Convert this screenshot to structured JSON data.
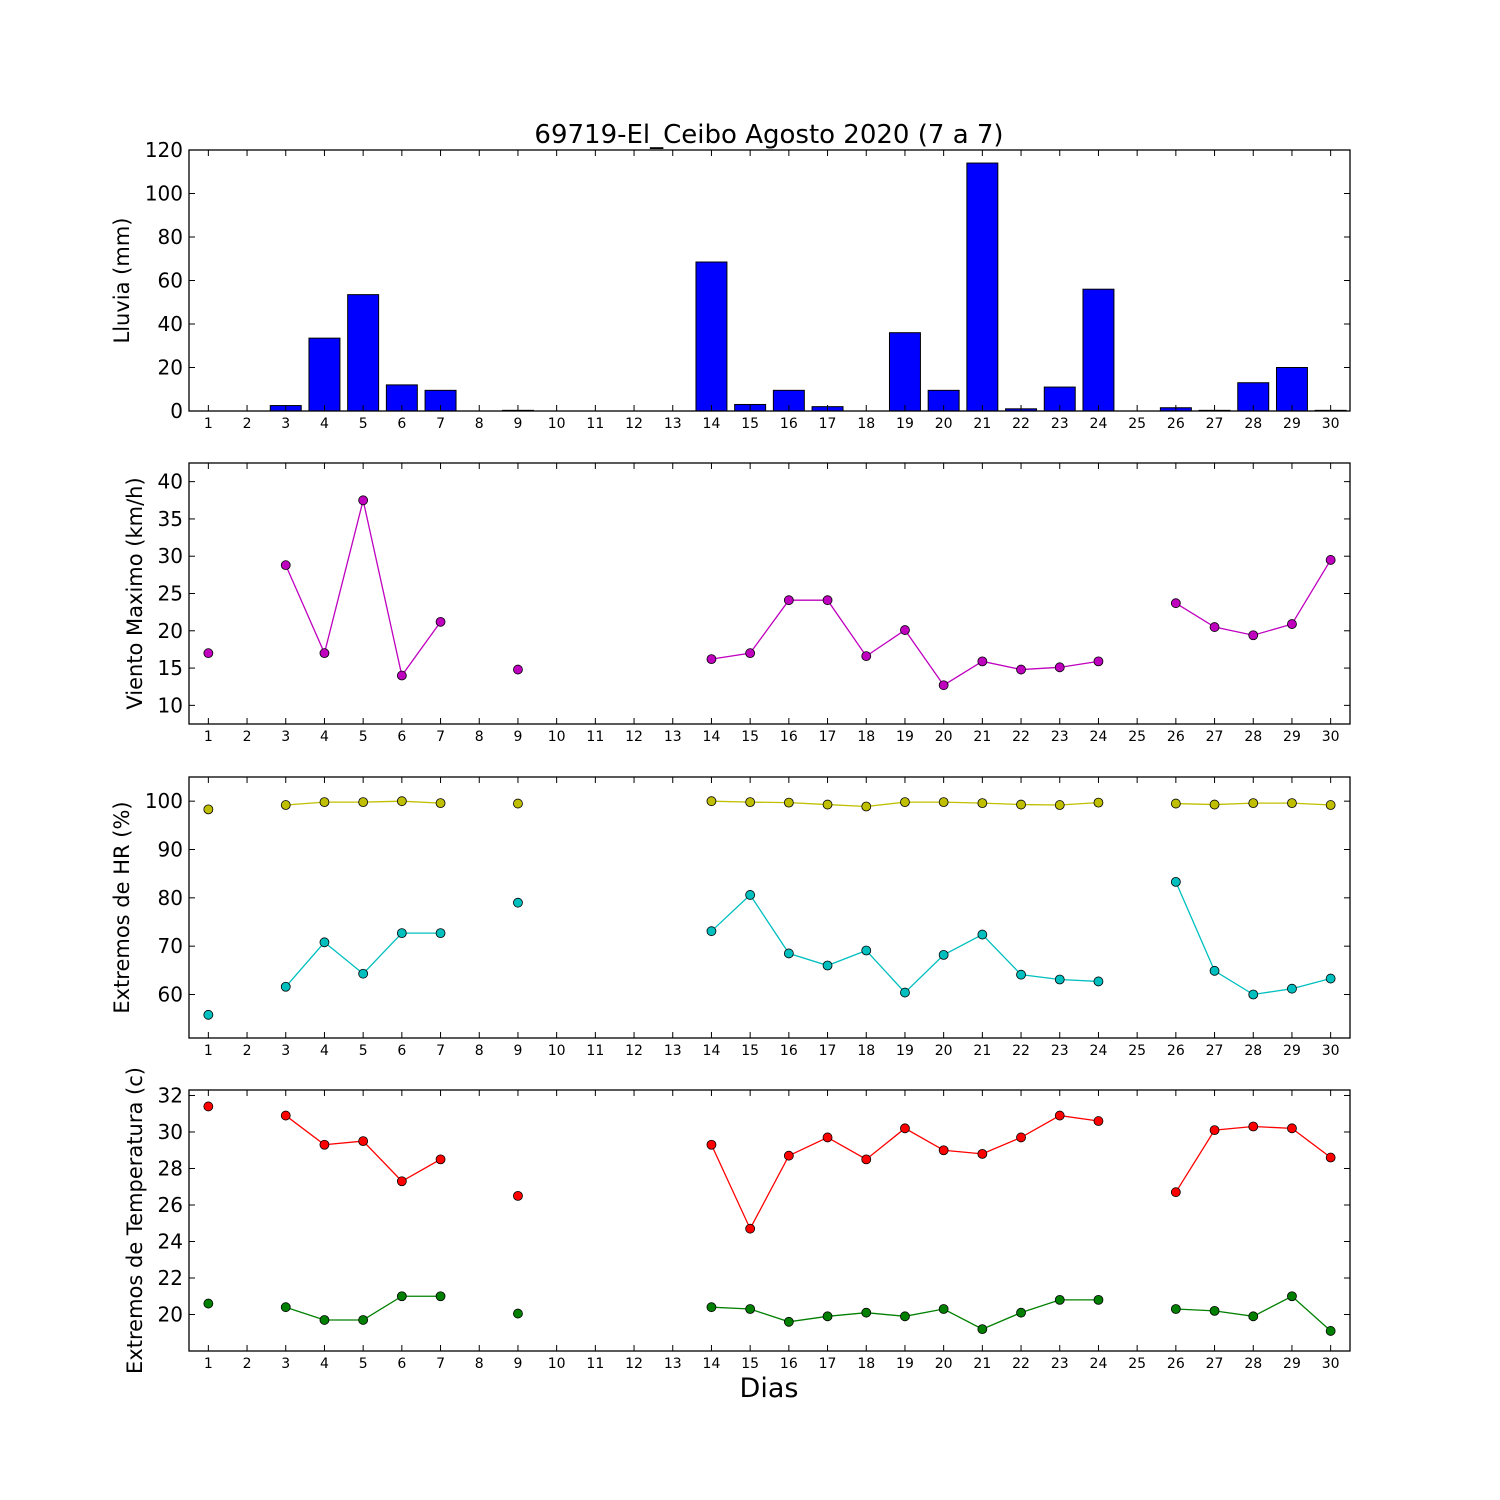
{
  "figure": {
    "title": "69719-El_Ceibo Agosto 2020  (7 a 7)",
    "xlabel": "Dias"
  },
  "chart_data": [
    {
      "type": "bar",
      "ylabel": "Lluvia (mm)",
      "ylim": [
        0,
        120
      ],
      "yticks": [
        0,
        20,
        40,
        60,
        80,
        100,
        120
      ],
      "xlim": [
        0.5,
        30.5
      ],
      "x": [
        1,
        2,
        3,
        4,
        5,
        6,
        7,
        8,
        9,
        10,
        11,
        12,
        13,
        14,
        15,
        16,
        17,
        18,
        19,
        20,
        21,
        22,
        23,
        24,
        25,
        26,
        27,
        28,
        29,
        30
      ],
      "series": [
        {
          "color": "#0000ff",
          "values": [
            0,
            0,
            2.5,
            33.5,
            53.5,
            12,
            9.5,
            0,
            0.3,
            0,
            0,
            0,
            0,
            68.5,
            3,
            9.5,
            2,
            0,
            36,
            9.5,
            114,
            1,
            11,
            56,
            0,
            1.5,
            0.3,
            13,
            20,
            0.3
          ]
        }
      ]
    },
    {
      "type": "line",
      "ylabel": "Viento Maximo (km/h)",
      "ylim": [
        7.5,
        42.5
      ],
      "yticks": [
        10,
        15,
        20,
        25,
        30,
        35,
        40
      ],
      "xlim": [
        0.5,
        30.5
      ],
      "x": [
        1,
        2,
        3,
        4,
        5,
        6,
        7,
        8,
        9,
        10,
        11,
        12,
        13,
        14,
        15,
        16,
        17,
        18,
        19,
        20,
        21,
        22,
        23,
        24,
        25,
        26,
        27,
        28,
        29,
        30
      ],
      "series": [
        {
          "color": "#bf00bf",
          "values": [
            17,
            null,
            28.8,
            17,
            37.5,
            14,
            21.2,
            null,
            14.8,
            null,
            null,
            null,
            null,
            16.2,
            17,
            24.1,
            24.1,
            16.6,
            20.1,
            12.7,
            15.9,
            14.8,
            15.1,
            15.9,
            null,
            23.7,
            20.5,
            19.4,
            20.9,
            29.5
          ]
        }
      ]
    },
    {
      "type": "line",
      "ylabel": "Extremos de HR (%)",
      "ylim": [
        51,
        105
      ],
      "yticks": [
        60,
        70,
        80,
        90,
        100
      ],
      "xlim": [
        0.5,
        30.5
      ],
      "x": [
        1,
        2,
        3,
        4,
        5,
        6,
        7,
        8,
        9,
        10,
        11,
        12,
        13,
        14,
        15,
        16,
        17,
        18,
        19,
        20,
        21,
        22,
        23,
        24,
        25,
        26,
        27,
        28,
        29,
        30
      ],
      "series": [
        {
          "color": "#bfbf00",
          "values": [
            98.3,
            null,
            99.2,
            99.8,
            99.8,
            100,
            99.6,
            null,
            99.5,
            null,
            null,
            null,
            null,
            100,
            99.8,
            99.7,
            99.3,
            98.9,
            99.8,
            99.8,
            99.6,
            99.3,
            99.2,
            99.7,
            null,
            99.5,
            99.3,
            99.6,
            99.6,
            99.2
          ]
        },
        {
          "color": "#00bfbf",
          "values": [
            55.8,
            null,
            61.6,
            70.8,
            64.3,
            72.7,
            72.7,
            null,
            79,
            null,
            null,
            null,
            null,
            73.1,
            80.6,
            68.5,
            66,
            69.1,
            60.4,
            68.2,
            72.4,
            64.1,
            63.1,
            62.7,
            null,
            83.3,
            64.9,
            60,
            61.2,
            63.3
          ]
        }
      ]
    },
    {
      "type": "line",
      "ylabel": "Extremos de Temperatura (c)",
      "ylim": [
        18,
        32.3
      ],
      "yticks": [
        20,
        22,
        24,
        26,
        28,
        30,
        32
      ],
      "xlim": [
        0.5,
        30.5
      ],
      "x": [
        1,
        2,
        3,
        4,
        5,
        6,
        7,
        8,
        9,
        10,
        11,
        12,
        13,
        14,
        15,
        16,
        17,
        18,
        19,
        20,
        21,
        22,
        23,
        24,
        25,
        26,
        27,
        28,
        29,
        30
      ],
      "series": [
        {
          "color": "#ff0000",
          "values": [
            31.4,
            null,
            30.9,
            29.3,
            29.5,
            27.3,
            28.5,
            null,
            26.5,
            null,
            null,
            null,
            null,
            29.3,
            24.7,
            28.7,
            29.7,
            28.5,
            30.2,
            29,
            28.8,
            29.7,
            30.9,
            30.6,
            null,
            26.7,
            30.1,
            30.3,
            30.2,
            28.6
          ]
        },
        {
          "color": "#008000",
          "values": [
            20.6,
            null,
            20.4,
            19.7,
            19.7,
            21,
            21,
            null,
            20.05,
            null,
            null,
            null,
            null,
            20.4,
            20.3,
            19.6,
            19.9,
            20.1,
            19.9,
            20.3,
            19.2,
            20.1,
            20.8,
            20.8,
            null,
            20.3,
            20.2,
            19.9,
            21,
            19.1
          ]
        }
      ]
    }
  ]
}
